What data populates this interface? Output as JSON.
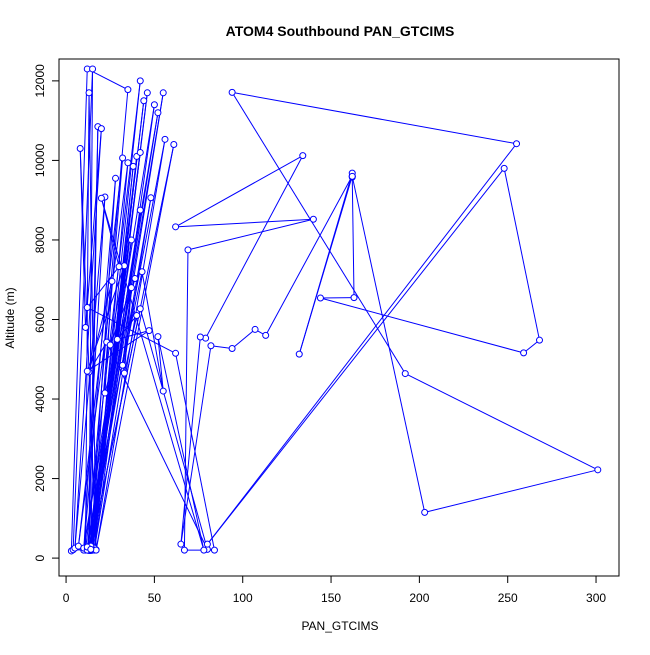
{
  "chart_data": {
    "type": "line",
    "title": "ATOM4 Southbound PAN_GTCIMS",
    "xlabel": "PAN_GTCIMS",
    "ylabel": "Altitude (m)",
    "xlim": [
      -4,
      313
    ],
    "ylim": [
      -450,
      12550
    ],
    "xticks": [
      0,
      50,
      100,
      150,
      200,
      250,
      300
    ],
    "yticks": [
      0,
      2000,
      4000,
      6000,
      8000,
      10000,
      12000
    ],
    "grid": false,
    "series_color": "#0000ff",
    "series": [
      {
        "x": [
          3,
          12,
          35,
          12,
          4,
          15,
          13,
          18,
          14,
          42,
          11,
          13,
          17,
          8,
          11,
          20,
          5,
          22,
          10,
          28,
          14,
          32,
          7,
          35,
          15,
          38,
          16,
          40,
          13,
          42,
          14,
          44,
          14,
          46,
          15,
          50,
          10,
          52,
          12,
          55,
          14,
          37,
          14,
          48,
          16,
          42,
          12,
          56,
          17,
          61,
          14,
          42,
          80,
          23,
          13,
          26,
          22,
          39,
          25,
          33,
          12,
          47,
          29,
          40,
          33,
          37,
          32,
          43,
          55,
          52,
          78,
          20,
          30,
          12,
          62,
          84,
          67,
          69,
          140,
          62,
          134,
          79,
          76,
          65,
          82,
          94,
          107,
          113,
          162,
          132,
          162,
          162,
          163,
          144,
          259,
          268,
          248,
          80,
          255,
          94,
          192,
          301,
          203,
          162
        ],
        "y": [
          180,
          12300,
          11780,
          200,
          210,
          12300,
          200,
          10850,
          190,
          12000,
          200,
          11700,
          210,
          10300,
          5800,
          10800,
          250,
          9080,
          200,
          9550,
          230,
          10060,
          300,
          9940,
          200,
          9850,
          250,
          10100,
          190,
          10200,
          200,
          11500,
          220,
          11700,
          200,
          11400,
          250,
          11200,
          200,
          11700,
          260,
          8000,
          300,
          9060,
          200,
          8750,
          280,
          10530,
          200,
          10400,
          220,
          6270,
          220,
          5430,
          4680,
          6960,
          4150,
          7030,
          5360,
          7350,
          4700,
          5720,
          5500,
          6100,
          4650,
          6800,
          4850,
          7200,
          4200,
          5570,
          200,
          9050,
          7330,
          6300,
          5150,
          200,
          200,
          7750,
          8520,
          8330,
          10120,
          5530,
          5560,
          350,
          5340,
          5270,
          5750,
          5600,
          9610,
          5130,
          9680,
          9580,
          6550,
          6540,
          5160,
          5480,
          9800,
          350,
          10420,
          11710,
          4640,
          2220,
          1150,
          9600
        ]
      }
    ]
  }
}
